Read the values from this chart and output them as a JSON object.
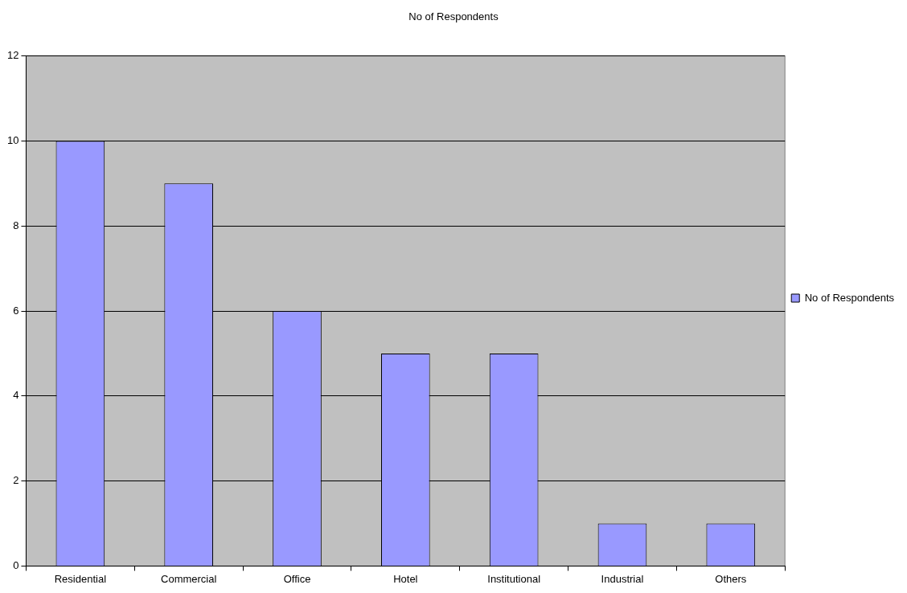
{
  "chart_data": {
    "type": "bar",
    "title": "No of Respondents",
    "categories": [
      "Residential",
      "Commercial",
      "Office",
      "Hotel",
      "Institutional",
      "Industrial",
      "Others"
    ],
    "series": [
      {
        "name": "No of Respondents",
        "color": "#9999ff",
        "values": [
          10,
          9,
          6,
          5,
          5,
          1,
          1
        ]
      }
    ],
    "ylim": [
      0,
      12
    ],
    "yticks": [
      0,
      2,
      4,
      6,
      8,
      10,
      12
    ],
    "grid": "y",
    "legend": "right"
  }
}
